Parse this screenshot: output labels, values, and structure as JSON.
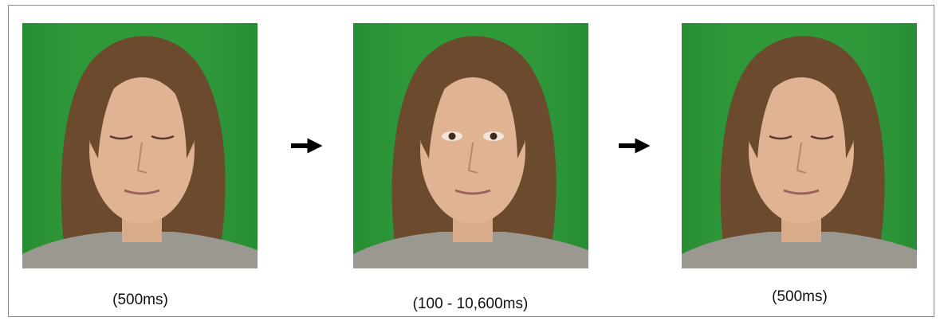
{
  "panels": [
    {
      "label": "(500ms)"
    },
    {
      "label": "(100 - 10,600ms)"
    },
    {
      "label": "(500ms)"
    }
  ]
}
